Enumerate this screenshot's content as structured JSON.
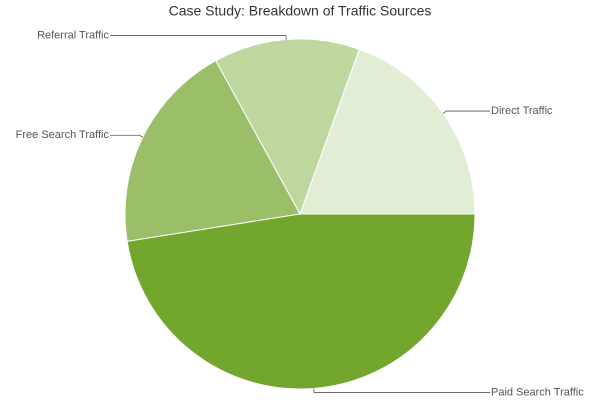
{
  "chart_data": {
    "type": "pie",
    "title": "Case Study: Breakdown of Traffic Sources",
    "categories": [
      "Direct Traffic",
      "Referral Traffic",
      "Free Search Traffic",
      "Paid Search Traffic"
    ],
    "values": [
      19.5,
      13.5,
      19.5,
      47.5
    ],
    "colors": [
      "#e2edd5",
      "#bed79e",
      "#9bbf69",
      "#72a62c"
    ]
  }
}
